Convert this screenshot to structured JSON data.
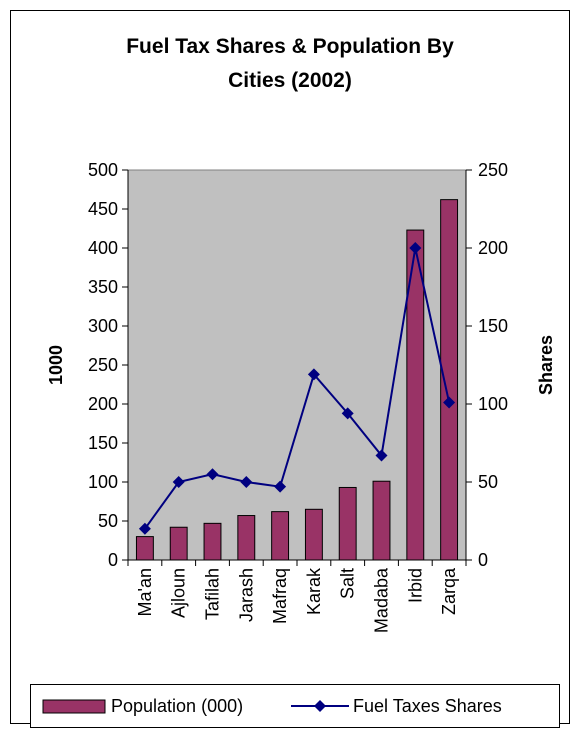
{
  "chart_data": {
    "type": "bar",
    "title_lines": [
      "Fuel Tax Shares & Population By",
      "Cities (2002)"
    ],
    "categories": [
      "Ma'an",
      "Ajloun",
      "Tafilah",
      "Jarash",
      "Mafraq",
      "Karak",
      "Salt",
      "Madaba",
      "Irbid",
      "Zarqa"
    ],
    "ylabel": "1000",
    "y2label": "Shares",
    "ylim": [
      0,
      500
    ],
    "y2lim": [
      0,
      250
    ],
    "yticks": [
      0,
      50,
      100,
      150,
      200,
      250,
      300,
      350,
      400,
      450,
      500
    ],
    "y2ticks": [
      0,
      50,
      100,
      150,
      200,
      250
    ],
    "grid": false,
    "legend_position": "bottom",
    "series": [
      {
        "name": "Population (000)",
        "type": "bar",
        "axis": "left",
        "color": "#993366",
        "values": [
          30,
          42,
          47,
          57,
          62,
          65,
          93,
          101,
          423,
          462
        ]
      },
      {
        "name": "Fuel Taxes Shares",
        "type": "line",
        "axis": "right",
        "color": "#000080",
        "values": [
          20,
          50,
          55,
          50,
          47,
          119,
          94,
          67,
          200,
          101
        ]
      }
    ],
    "plot_background": "#c0c0c0"
  }
}
